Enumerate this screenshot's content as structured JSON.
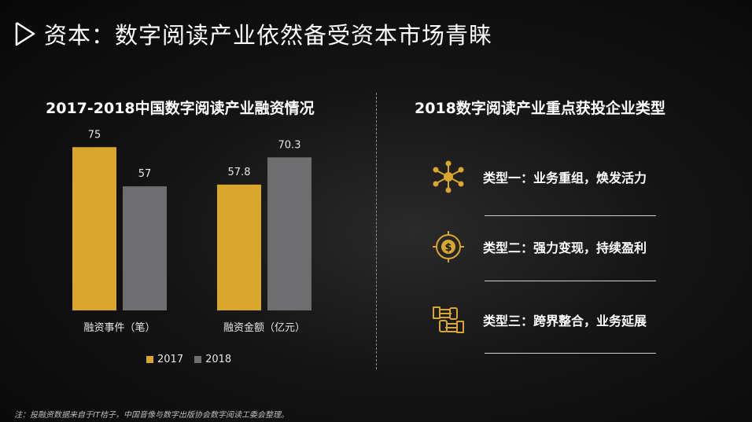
{
  "header": {
    "title": "资本：数字阅读产业依然备受资本市场青睐"
  },
  "left_panel": {
    "subtitle": "2017-2018中国数字阅读产业融资情况"
  },
  "right_panel": {
    "subtitle": "2018数字阅读产业重点获投企业类型",
    "items": [
      {
        "label": "类型一：业务重组，焕发活力",
        "icon": "network-icon"
      },
      {
        "label": "类型二：强力变现，持续盈利",
        "icon": "dollar-target-icon"
      },
      {
        "label": "类型三：跨界整合，业务延展",
        "icon": "handshake-icon"
      }
    ]
  },
  "colors": {
    "accent": "#d9a62e",
    "gray": "#6e6e70"
  },
  "chart_data": {
    "type": "bar",
    "categories": [
      "融资事件（笔）",
      "融资金额（亿元）"
    ],
    "series": [
      {
        "name": "2017",
        "values": [
          75,
          57.8
        ],
        "color": "#d9a62e"
      },
      {
        "name": "2018",
        "values": [
          57,
          70.3
        ],
        "color": "#6e6e70"
      }
    ],
    "legend": "bottom"
  },
  "footnote": "注：投融资数据来自于IT桔子，中国音像与数字出版协会数字阅读工委会整理。"
}
